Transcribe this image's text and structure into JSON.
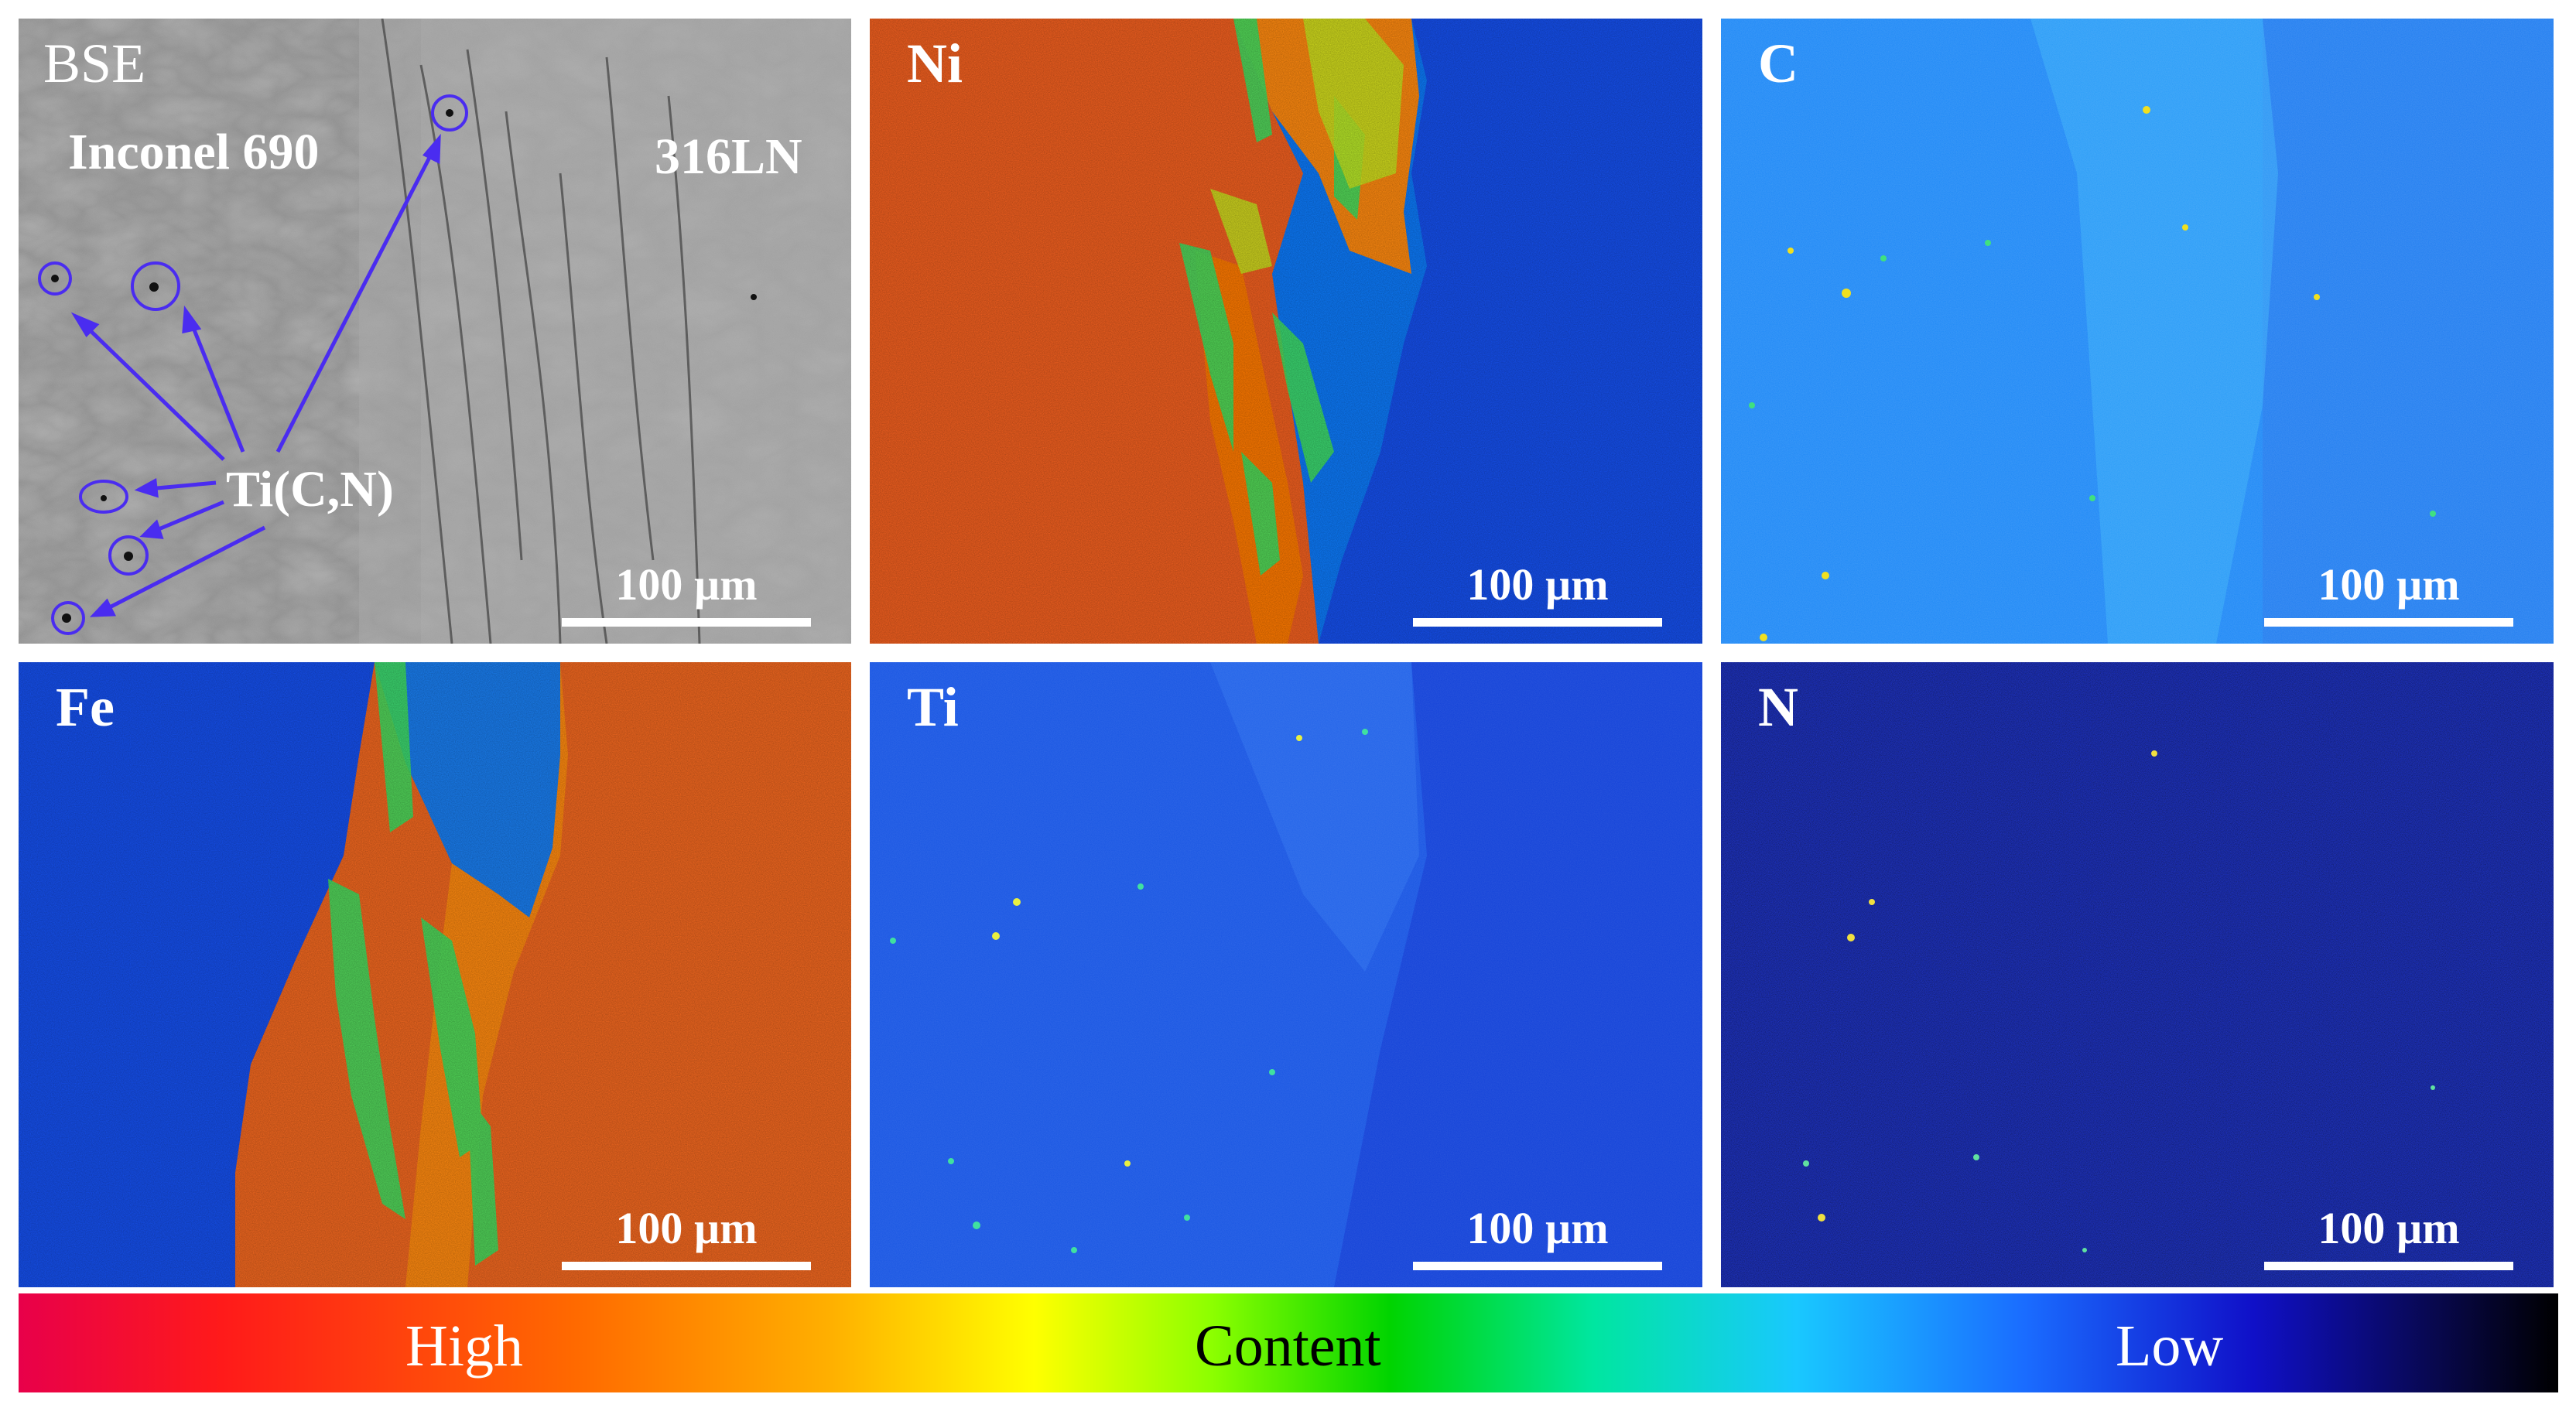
{
  "panels": {
    "bse": {
      "label": "BSE",
      "left_alloy": "Inconel 690",
      "right_alloy": "316LN",
      "particle_label": "Ti(C,N)",
      "scale": "100 µm"
    },
    "ni": {
      "label": "Ni",
      "scale": "100 µm"
    },
    "c": {
      "label": "C",
      "scale": "100 µm"
    },
    "fe": {
      "label": "Fe",
      "scale": "100 µm"
    },
    "ti": {
      "label": "Ti",
      "scale": "100 µm"
    },
    "n": {
      "label": "N",
      "scale": "100 µm"
    }
  },
  "colorbar": {
    "high": "High",
    "middle": "Content",
    "low": "Low"
  },
  "colors": {
    "high": "#f05a10",
    "low": "#1040e0",
    "annotation": "#4a2cf0"
  }
}
